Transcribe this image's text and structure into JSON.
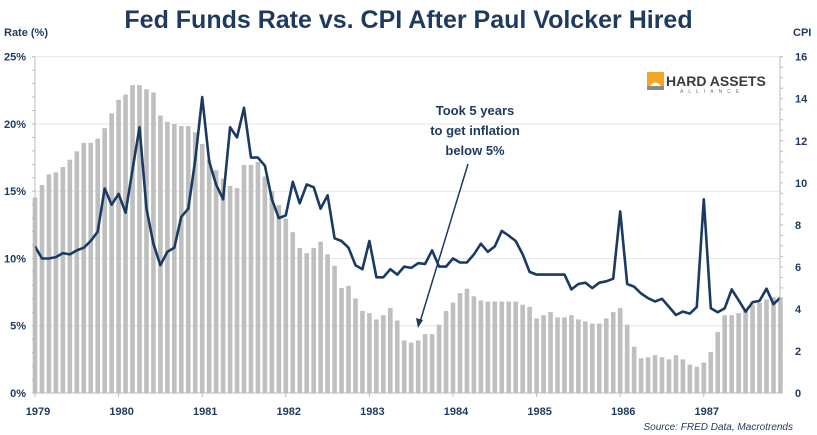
{
  "chart_data": {
    "type": "bar+line",
    "title": "Fed Funds Rate vs. CPI After Paul Volcker Hired",
    "ylabel_left": "Rate (%)",
    "ylabel_right": "CPI",
    "ylim_left": [
      0,
      25
    ],
    "ylim_right": [
      0,
      16
    ],
    "yticks_left": [
      "0%",
      "5%",
      "10%",
      "15%",
      "20%",
      "25%"
    ],
    "yticks_right": [
      "0",
      "2",
      "4",
      "6",
      "8",
      "10",
      "12",
      "14",
      "16"
    ],
    "xticks": [
      "1979",
      "1980",
      "1981",
      "1982",
      "1983",
      "1984",
      "1985",
      "1986",
      "1987"
    ],
    "x_start": "1979-01",
    "frequency": "monthly",
    "grid": "horizontal",
    "colors": {
      "line": "#1b3a63",
      "bars": "#bfbfbf",
      "text": "#1f3a5f"
    },
    "series": [
      {
        "type": "bar",
        "axis": "right",
        "values": [
          9.3,
          9.9,
          10.4,
          10.5,
          10.75,
          11.1,
          11.5,
          11.9,
          11.9,
          12.1,
          12.6,
          13.3,
          13.95,
          14.2,
          14.65,
          14.65,
          14.45,
          14.3,
          13.2,
          12.9,
          12.8,
          12.7,
          12.7,
          12.4,
          11.85,
          11.1,
          10.6,
          10.2,
          9.85,
          9.75,
          10.85,
          10.85,
          11.0,
          10.3,
          9.6,
          8.95,
          8.3,
          7.65,
          6.9,
          6.65,
          6.9,
          7.2,
          6.6,
          6.05,
          5.0,
          5.1,
          4.5,
          3.9,
          3.8,
          3.5,
          3.7,
          4.05,
          3.45,
          2.5,
          2.4,
          2.5,
          2.8,
          2.8,
          3.25,
          3.9,
          4.3,
          4.75,
          4.96,
          4.6,
          4.4,
          4.35,
          4.35,
          4.35,
          4.35,
          4.35,
          4.2,
          4.1,
          3.55,
          3.7,
          3.85,
          3.6,
          3.6,
          3.7,
          3.5,
          3.4,
          3.3,
          3.3,
          3.55,
          3.85,
          4.05,
          3.25,
          2.2,
          1.65,
          1.7,
          1.8,
          1.7,
          1.6,
          1.8,
          1.6,
          1.35,
          1.25,
          1.45,
          1.95,
          2.9,
          3.7,
          3.7,
          3.8,
          3.95,
          4.2,
          4.3,
          4.45,
          4.55,
          4.55
        ]
      },
      {
        "type": "line",
        "axis": "left",
        "values": [
          10.9,
          10.0,
          10.0,
          10.1,
          10.4,
          10.3,
          10.6,
          10.8,
          11.3,
          12.0,
          15.2,
          14.0,
          14.8,
          13.4,
          16.6,
          19.75,
          13.7,
          11.1,
          9.5,
          10.5,
          10.8,
          13.1,
          13.7,
          17.3,
          22.0,
          17.2,
          15.5,
          14.4,
          19.75,
          19.0,
          21.2,
          17.5,
          17.5,
          16.9,
          14.4,
          13.0,
          13.2,
          15.7,
          14.1,
          15.5,
          15.3,
          13.7,
          14.7,
          11.5,
          11.3,
          10.8,
          9.5,
          9.2,
          11.3,
          8.6,
          8.6,
          9.2,
          8.8,
          9.4,
          9.3,
          9.65,
          9.6,
          10.6,
          9.4,
          9.4,
          10.0,
          9.7,
          9.7,
          10.3,
          11.1,
          10.5,
          10.9,
          12.05,
          11.7,
          11.3,
          10.3,
          9.0,
          8.8,
          8.8,
          8.8,
          8.8,
          8.8,
          7.7,
          8.1,
          8.2,
          7.8,
          8.2,
          8.3,
          8.5,
          13.5,
          8.1,
          7.9,
          7.4,
          7.05,
          6.8,
          7.0,
          6.4,
          5.8,
          6.05,
          5.9,
          6.4,
          14.4,
          6.3,
          6.0,
          6.3,
          7.7,
          6.9,
          6.05,
          6.75,
          6.85,
          7.75,
          6.6,
          7.1
        ]
      }
    ],
    "annotation": [
      "Took 5 years",
      "to get inflation",
      "below 5%"
    ],
    "source": "Source: FRED Data, Macrotrends",
    "logo": {
      "text": "HARD ASSETS",
      "subtext": "ALLIANCE",
      "color": "#f5a623"
    }
  }
}
